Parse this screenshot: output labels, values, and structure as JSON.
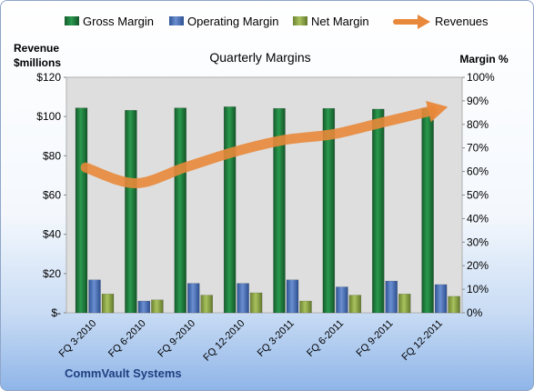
{
  "chart_data": {
    "type": "bar",
    "title": "Quarterly Margins",
    "footer": "CommVault Systems",
    "left_axis_title_line1": "Revenue",
    "left_axis_title_line2": "$millions",
    "right_axis_title": "Margin %",
    "categories": [
      "FQ 3-2010",
      "FQ 6-2010",
      "FQ 9-2010",
      "FQ 12-2010",
      "FQ 3-2011",
      "FQ 6-2011",
      "FQ 9-2011",
      "FQ 12-2011"
    ],
    "left_axis": {
      "min": 0,
      "max": 120,
      "step": 20,
      "tick_labels": [
        "$-",
        "$20",
        "$40",
        "$60",
        "$80",
        "$100",
        "$120"
      ]
    },
    "right_axis": {
      "min": 0,
      "max": 100,
      "step": 10,
      "tick_labels": [
        "0%",
        "10%",
        "20%",
        "30%",
        "40%",
        "50%",
        "60%",
        "70%",
        "80%",
        "90%",
        "100%"
      ]
    },
    "series": [
      {
        "name": "Gross Margin",
        "type": "bar",
        "axis": "right",
        "color": "#1e7a3c",
        "values": [
          87,
          86,
          87,
          87.5,
          86.8,
          86.8,
          86.5,
          86.8
        ]
      },
      {
        "name": "Operating Margin",
        "type": "bar",
        "axis": "right",
        "color": "#4a72b8",
        "values": [
          14,
          5,
          12.5,
          12.5,
          14,
          11,
          13.5,
          12
        ]
      },
      {
        "name": "Net Margin",
        "type": "bar",
        "axis": "right",
        "color": "#8fa84a",
        "values": [
          8,
          5.5,
          7.5,
          8.5,
          5,
          7.5,
          8,
          7
        ]
      },
      {
        "name": "Revenues",
        "type": "line",
        "axis": "left",
        "color": "#e8883a",
        "values": [
          74,
          66,
          74,
          82,
          88,
          91,
          97,
          103
        ]
      }
    ],
    "legend_position": "top",
    "grid": false
  }
}
